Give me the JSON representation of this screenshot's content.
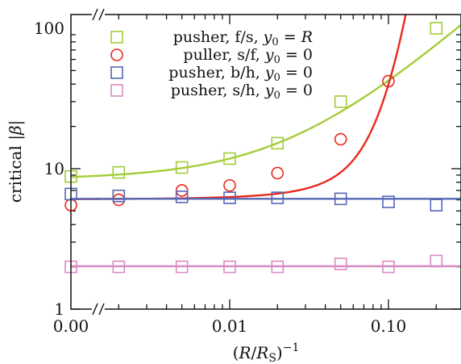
{
  "chart_data": {
    "type": "scatter",
    "xscale": "log",
    "yscale": "log",
    "xlabel": "(R/R_S)^-1",
    "xlabel_parts": {
      "open": "(",
      "R": "R",
      "slash": "/",
      "R2": "R",
      "sub": "S",
      "close": ")",
      "sup": "−1"
    },
    "ylabel_parts": {
      "text": "critical |",
      "beta": "β",
      "close": "|"
    },
    "ylim": [
      1,
      100
    ],
    "x_ticks": [
      {
        "value": 0.001,
        "label": "0.00"
      },
      {
        "value": 0.01,
        "label": "0.01"
      },
      {
        "value": 0.1,
        "label": "0.10"
      }
    ],
    "y_ticks": [
      {
        "value": 1,
        "label": "1"
      },
      {
        "value": 10,
        "label": "10"
      },
      {
        "value": 100,
        "label": "100"
      }
    ],
    "axis_break_mark": "//",
    "legend_position": "top-right",
    "series": [
      {
        "name": "pusher, f/s, y0 = R",
        "name_parts": {
          "prefix": "pusher, f/s, ",
          "var": "y",
          "sub": "0",
          "eq": " = ",
          "val": "R",
          "val_italic": true
        },
        "marker": "square",
        "color": "#a3cd39",
        "x": [
          0.001,
          0.002,
          0.005,
          0.01,
          0.02,
          0.05,
          0.2
        ],
        "y": [
          8.8,
          9.4,
          10.2,
          11.8,
          15.2,
          30.0,
          100
        ],
        "fit": {
          "model": "linear",
          "a": 8.4,
          "b": 340
        }
      },
      {
        "name": "puller, s/f, y0 = 0",
        "name_parts": {
          "prefix": "puller, s/f, ",
          "var": "y",
          "sub": "0",
          "eq": " = ",
          "val": "0",
          "val_italic": false
        },
        "marker": "circle",
        "color": "#e8291c",
        "x": [
          0.001,
          0.002,
          0.005,
          0.01,
          0.02,
          0.05,
          0.1
        ],
        "y": [
          5.5,
          6.0,
          7.0,
          7.6,
          9.3,
          16.2,
          42.0
        ],
        "fit": {
          "model": "exp",
          "a": 6.05,
          "b": 0.42,
          "k": 44
        }
      },
      {
        "name": "pusher, b/h, y0 = 0",
        "name_parts": {
          "prefix": "pusher, b/h, ",
          "var": "y",
          "sub": "0",
          "eq": " = ",
          "val": "0",
          "val_italic": false
        },
        "marker": "square",
        "color": "#5568b5",
        "x": [
          0.001,
          0.002,
          0.005,
          0.01,
          0.02,
          0.05,
          0.1,
          0.2
        ],
        "y": [
          6.6,
          6.4,
          6.3,
          6.2,
          6.2,
          6.1,
          5.8,
          5.5
        ],
        "fit": {
          "model": "const",
          "a": 6.1
        }
      },
      {
        "name": "pusher, s/h, y0 = 0",
        "name_parts": {
          "prefix": "pusher, s/h, ",
          "var": "y",
          "sub": "0",
          "eq": " = ",
          "val": "0",
          "val_italic": false
        },
        "marker": "square",
        "color": "#d98cc3",
        "x": [
          0.001,
          0.002,
          0.005,
          0.01,
          0.02,
          0.05,
          0.1,
          0.2
        ],
        "y": [
          2.0,
          2.0,
          2.0,
          2.0,
          2.0,
          2.1,
          2.0,
          2.2
        ],
        "fit": {
          "model": "const",
          "a": 2.02
        }
      }
    ]
  }
}
